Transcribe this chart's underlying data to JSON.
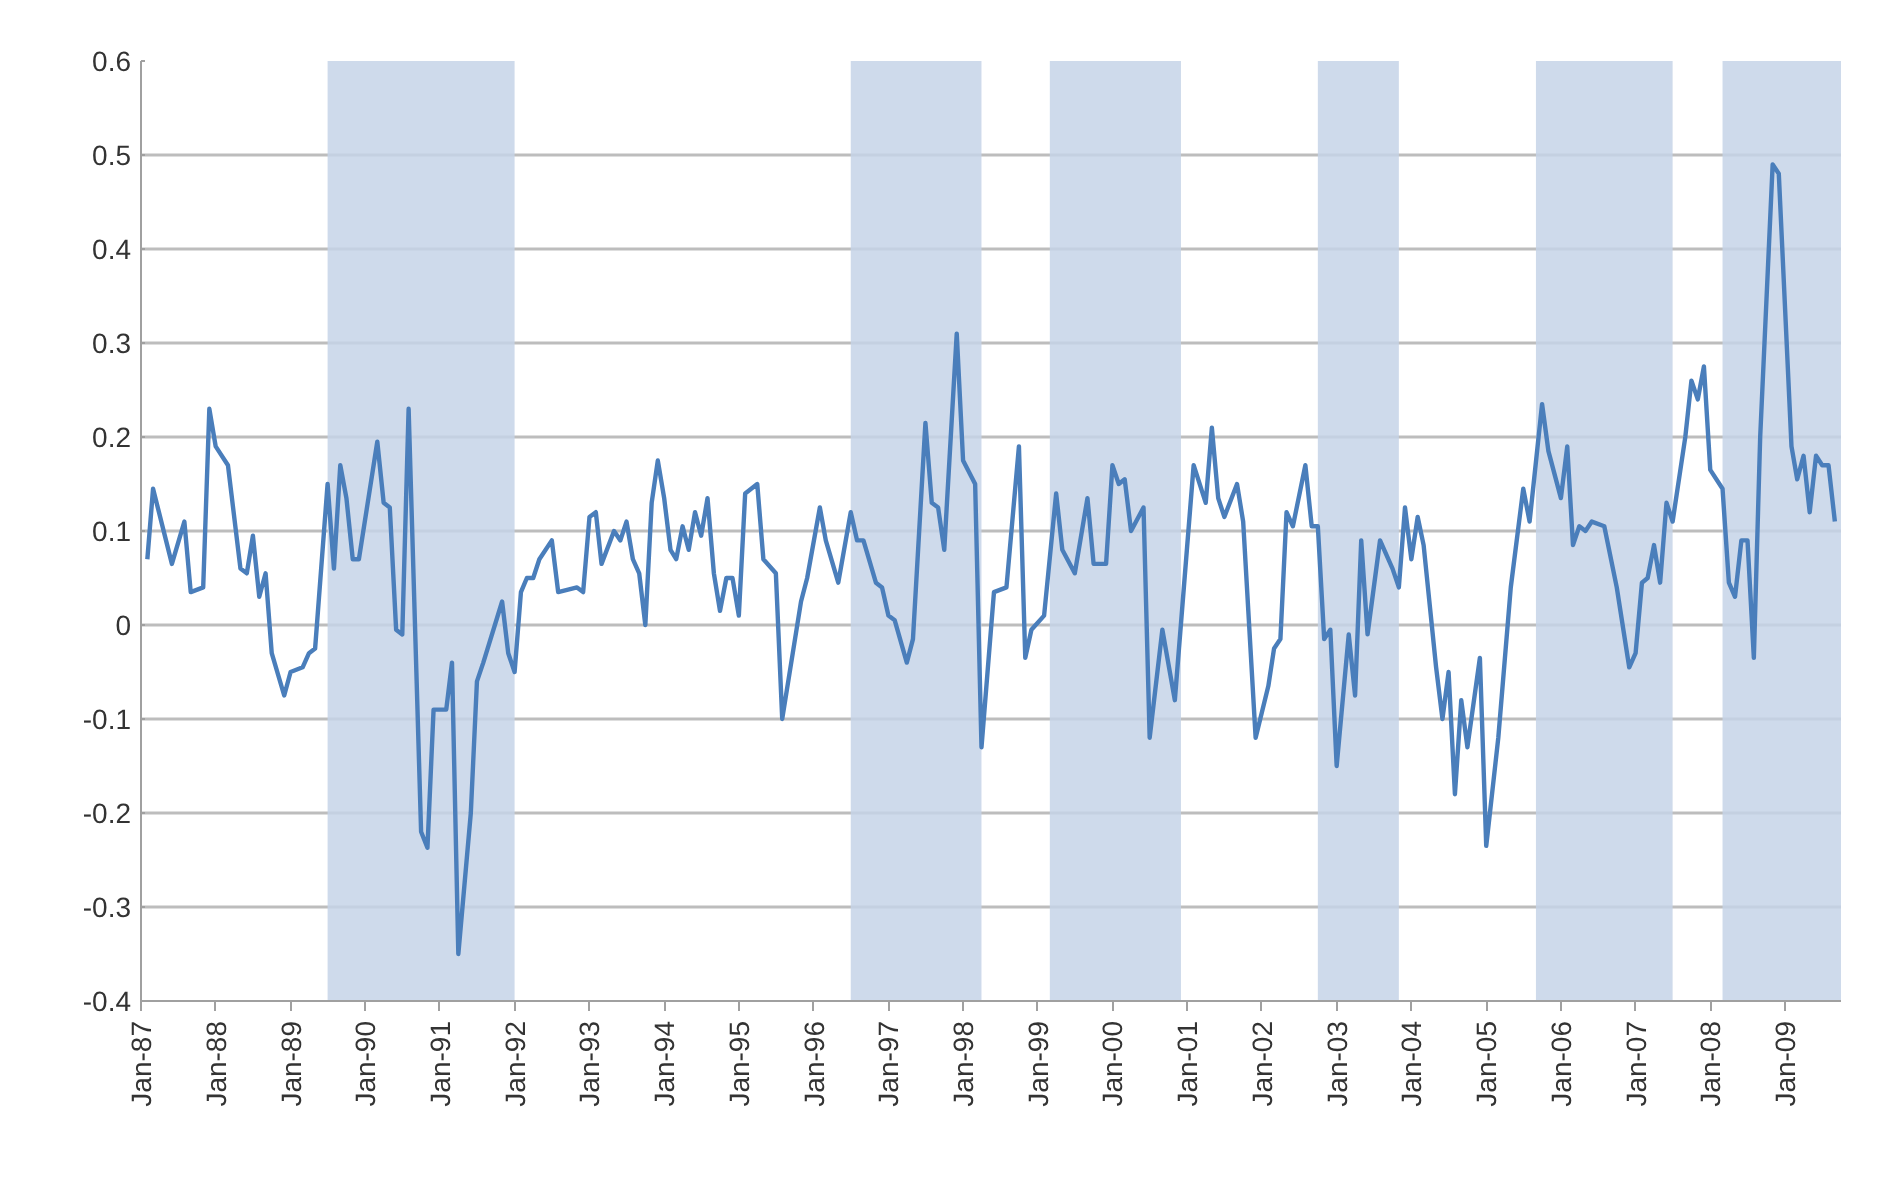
{
  "chart_data": {
    "type": "line",
    "x": [
      "1987-02",
      "1987-03",
      "1987-06",
      "1987-08",
      "1987-09",
      "1987-11",
      "1987-12",
      "1988-01",
      "1988-03",
      "1988-05",
      "1988-06",
      "1988-07",
      "1988-08",
      "1988-09",
      "1988-10",
      "1988-12",
      "1989-01",
      "1989-03",
      "1989-04",
      "1989-05",
      "1989-07",
      "1989-08",
      "1989-09",
      "1989-10",
      "1989-11",
      "1989-12",
      "1990-03",
      "1990-04",
      "1990-05",
      "1990-06",
      "1990-07",
      "1990-08",
      "1990-10",
      "1990-11",
      "1990-12",
      "1991-02",
      "1991-03",
      "1991-04",
      "1991-06",
      "1991-07",
      "1991-08",
      "1991-11",
      "1991-12",
      "1992-01",
      "1992-02",
      "1992-03",
      "1992-04",
      "1992-05",
      "1992-07",
      "1992-08",
      "1992-11",
      "1992-12",
      "1993-01",
      "1993-02",
      "1993-03",
      "1993-05",
      "1993-06",
      "1993-07",
      "1993-08",
      "1993-09",
      "1993-10",
      "1993-11",
      "1993-12",
      "1994-01",
      "1994-02",
      "1994-03",
      "1994-04",
      "1994-05",
      "1994-06",
      "1994-07",
      "1994-08",
      "1994-09",
      "1994-10",
      "1994-11",
      "1994-12",
      "1995-01",
      "1995-02",
      "1995-04",
      "1995-05",
      "1995-07",
      "1995-08",
      "1995-11",
      "1995-12",
      "1996-02",
      "1996-03",
      "1996-05",
      "1996-07",
      "1996-08",
      "1996-09",
      "1996-11",
      "1996-12",
      "1997-01",
      "1997-02",
      "1997-04",
      "1997-05",
      "1997-07",
      "1997-08",
      "1997-09",
      "1997-10",
      "1997-12",
      "1998-01",
      "1998-03",
      "1998-04",
      "1998-06",
      "1998-08",
      "1998-10",
      "1998-11",
      "1998-12",
      "1999-02",
      "1999-04",
      "1999-05",
      "1999-07",
      "1999-09",
      "1999-10",
      "1999-12",
      "2000-01",
      "2000-02",
      "2000-03",
      "2000-04",
      "2000-06",
      "2000-07",
      "2000-09",
      "2000-11",
      "2001-02",
      "2001-04",
      "2001-05",
      "2001-06",
      "2001-07",
      "2001-09",
      "2001-10",
      "2001-12",
      "2002-02",
      "2002-03",
      "2002-04",
      "2002-05",
      "2002-06",
      "2002-08",
      "2002-09",
      "2002-10",
      "2002-11",
      "2002-12",
      "2003-01",
      "2003-03",
      "2003-04",
      "2003-05",
      "2003-06",
      "2003-08",
      "2003-10",
      "2003-11",
      "2003-12",
      "2004-01",
      "2004-02",
      "2004-03",
      "2004-05",
      "2004-06",
      "2004-07",
      "2004-08",
      "2004-09",
      "2004-10",
      "2004-12",
      "2005-01",
      "2005-03",
      "2005-05",
      "2005-07",
      "2005-08",
      "2005-10",
      "2005-11",
      "2006-01",
      "2006-02",
      "2006-03",
      "2006-04",
      "2006-05",
      "2006-06",
      "2006-08",
      "2006-10",
      "2006-12",
      "2007-01",
      "2007-02",
      "2007-03",
      "2007-04",
      "2007-05",
      "2007-06",
      "2007-07",
      "2007-09",
      "2007-10",
      "2007-11",
      "2007-12",
      "2008-01",
      "2008-03",
      "2008-04",
      "2008-05",
      "2008-06",
      "2008-07",
      "2008-08",
      "2008-09",
      "2008-11",
      "2008-12",
      "2009-02",
      "2009-03",
      "2009-04",
      "2009-05",
      "2009-06",
      "2009-07",
      "2009-08",
      "2009-09"
    ],
    "series": [
      {
        "color": "#4a7ebb",
        "values": [
          0.07,
          0.145,
          0.065,
          0.11,
          0.035,
          0.04,
          0.23,
          0.19,
          0.17,
          0.06,
          0.055,
          0.095,
          0.03,
          0.055,
          -0.03,
          -0.075,
          -0.05,
          -0.045,
          -0.03,
          -0.025,
          0.15,
          0.06,
          0.17,
          0.135,
          0.07,
          0.07,
          0.195,
          0.13,
          0.125,
          -0.005,
          -0.01,
          0.23,
          -0.22,
          -0.237,
          -0.09,
          -0.09,
          -0.04,
          -0.35,
          -0.2,
          -0.06,
          -0.04,
          0.025,
          -0.03,
          -0.05,
          0.035,
          0.05,
          0.05,
          0.07,
          0.09,
          0.035,
          0.04,
          0.035,
          0.115,
          0.12,
          0.065,
          0.1,
          0.09,
          0.11,
          0.07,
          0.055,
          0.0,
          0.13,
          0.175,
          0.135,
          0.08,
          0.07,
          0.105,
          0.08,
          0.12,
          0.095,
          0.135,
          0.055,
          0.015,
          0.05,
          0.05,
          0.01,
          0.14,
          0.15,
          0.07,
          0.055,
          -0.1,
          0.025,
          0.05,
          0.125,
          0.09,
          0.045,
          0.12,
          0.09,
          0.09,
          0.045,
          0.04,
          0.01,
          0.005,
          -0.04,
          -0.015,
          0.215,
          0.13,
          0.125,
          0.08,
          0.31,
          0.175,
          0.15,
          -0.13,
          0.035,
          0.04,
          0.19,
          -0.035,
          -0.005,
          0.01,
          0.14,
          0.08,
          0.055,
          0.135,
          0.065,
          0.065,
          0.17,
          0.15,
          0.155,
          0.1,
          0.125,
          -0.12,
          -0.005,
          -0.08,
          0.17,
          0.13,
          0.21,
          0.135,
          0.115,
          0.15,
          0.11,
          -0.12,
          -0.065,
          -0.025,
          -0.015,
          0.12,
          0.105,
          0.17,
          0.105,
          0.105,
          -0.015,
          -0.005,
          -0.15,
          -0.01,
          -0.075,
          0.09,
          -0.01,
          0.09,
          0.06,
          0.04,
          0.125,
          0.07,
          0.115,
          0.085,
          -0.045,
          -0.1,
          -0.05,
          -0.18,
          -0.08,
          -0.13,
          -0.035,
          -0.235,
          -0.12,
          0.04,
          0.145,
          0.11,
          0.235,
          0.185,
          0.135,
          0.19,
          0.085,
          0.105,
          0.1,
          0.11,
          0.105,
          0.04,
          -0.045,
          -0.03,
          0.045,
          0.05,
          0.085,
          0.045,
          0.13,
          0.11,
          0.2,
          0.26,
          0.24,
          0.275,
          0.165,
          0.145,
          0.045,
          0.03,
          0.09,
          0.09,
          -0.035,
          0.2,
          0.49,
          0.48,
          0.19,
          0.155,
          0.18,
          0.12,
          0.18,
          0.17,
          0.17,
          0.11
        ]
      }
    ],
    "xlim": [
      "1987-01",
      "2009-10"
    ],
    "xticks": [
      {
        "value": "1987-01",
        "label": "Jan-87"
      },
      {
        "value": "1988-01",
        "label": "Jan-88"
      },
      {
        "value": "1989-01",
        "label": "Jan-89"
      },
      {
        "value": "1990-01",
        "label": "Jan-90"
      },
      {
        "value": "1991-01",
        "label": "Jan-91"
      },
      {
        "value": "1992-01",
        "label": "Jan-92"
      },
      {
        "value": "1993-01",
        "label": "Jan-93"
      },
      {
        "value": "1994-01",
        "label": "Jan-94"
      },
      {
        "value": "1995-01",
        "label": "Jan-95"
      },
      {
        "value": "1996-01",
        "label": "Jan-96"
      },
      {
        "value": "1997-01",
        "label": "Jan-97"
      },
      {
        "value": "1998-01",
        "label": "Jan-98"
      },
      {
        "value": "1999-01",
        "label": "Jan-99"
      },
      {
        "value": "2000-01",
        "label": "Jan-00"
      },
      {
        "value": "2001-01",
        "label": "Jan-01"
      },
      {
        "value": "2002-01",
        "label": "Jan-02"
      },
      {
        "value": "2003-01",
        "label": "Jan-03"
      },
      {
        "value": "2004-01",
        "label": "Jan-04"
      },
      {
        "value": "2005-01",
        "label": "Jan-05"
      },
      {
        "value": "2006-01",
        "label": "Jan-06"
      },
      {
        "value": "2007-01",
        "label": "Jan-07"
      },
      {
        "value": "2008-01",
        "label": "Jan-08"
      },
      {
        "value": "2009-01",
        "label": "Jan-09"
      }
    ],
    "ylim": [
      -0.4,
      0.6
    ],
    "yticks": [
      -0.4,
      -0.3,
      -0.2,
      -0.1,
      0,
      0.1,
      0.2,
      0.3,
      0.4,
      0.5,
      0.6
    ],
    "grid": "y",
    "line_style": "solid",
    "bands": [
      {
        "axis": "x",
        "from": "1989-07",
        "to": "1992-01",
        "color": "#c5d3e8"
      },
      {
        "axis": "x",
        "from": "1996-07",
        "to": "1998-04",
        "color": "#c5d3e8"
      },
      {
        "axis": "x",
        "from": "1999-03",
        "to": "2000-12",
        "color": "#c5d3e8"
      },
      {
        "axis": "x",
        "from": "2002-10",
        "to": "2003-11",
        "color": "#c5d3e8"
      },
      {
        "axis": "x",
        "from": "2005-09",
        "to": "2007-07",
        "color": "#c5d3e8"
      },
      {
        "axis": "x",
        "from": "2008-03",
        "to": "2009-10",
        "color": "#c5d3e8"
      }
    ]
  }
}
